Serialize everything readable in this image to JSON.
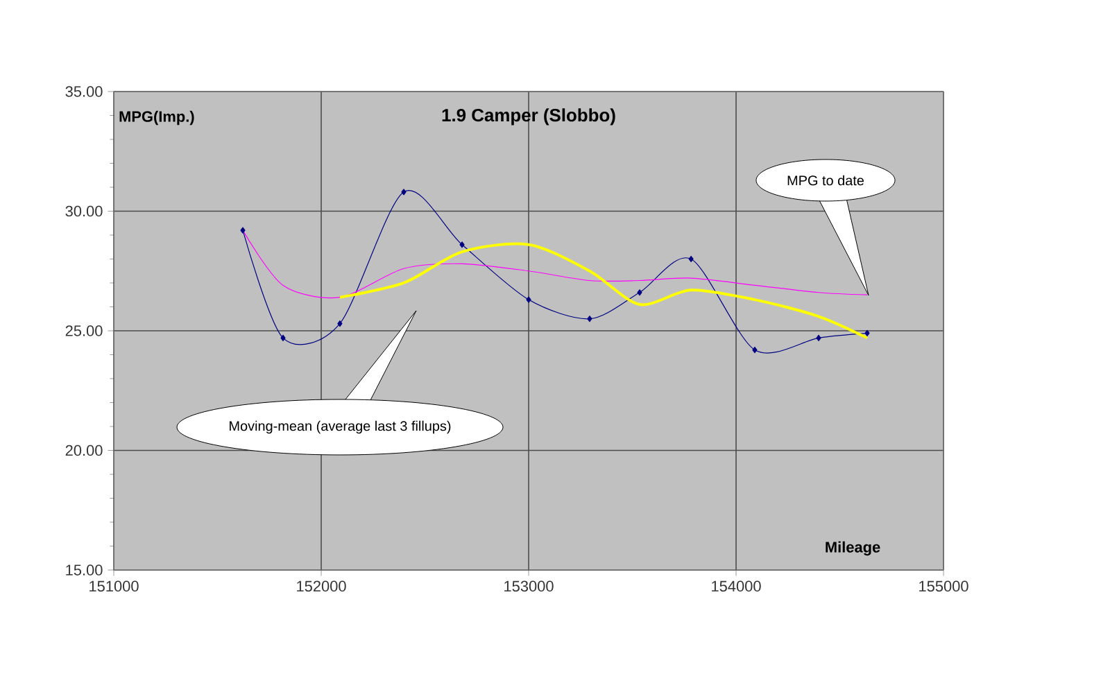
{
  "chart_data": {
    "type": "line",
    "title": "1.9 Camper (Slobbo)",
    "xlabel": "Mileage",
    "ylabel": "MPG(Imp.)",
    "xlim": [
      151000,
      155000
    ],
    "xticks": [
      151000,
      152000,
      153000,
      154000,
      155000
    ],
    "ylim": [
      15,
      35
    ],
    "yticks": [
      {
        "value": 15,
        "label": "15.00"
      },
      {
        "value": 20,
        "label": "20.00"
      },
      {
        "value": 25,
        "label": "25.00"
      },
      {
        "value": 30,
        "label": "30.00"
      },
      {
        "value": 35,
        "label": "35.00"
      }
    ],
    "grid": true,
    "series": [
      {
        "color": "#000080",
        "marker": "diamond",
        "x": [
          151622,
          151816,
          152090,
          152398,
          152679,
          153000,
          153294,
          153535,
          153783,
          154090,
          154398,
          154632
        ],
        "values": [
          29.2,
          24.7,
          25.3,
          30.8,
          28.6,
          26.3,
          25.5,
          26.6,
          28.0,
          24.2,
          24.7,
          24.9
        ]
      },
      {
        "color": "#ff00ff",
        "marker": "none",
        "x": [
          151622,
          151816,
          152090,
          152398,
          152679,
          153000,
          153294,
          153535,
          153783,
          154090,
          154398,
          154632
        ],
        "values": [
          29.2,
          26.9,
          26.4,
          27.6,
          27.8,
          27.5,
          27.1,
          27.1,
          27.2,
          26.9,
          26.6,
          26.5
        ]
      },
      {
        "color": "#ffff00",
        "marker": "none",
        "x": [
          152090,
          152398,
          152679,
          153000,
          153294,
          153535,
          153783,
          154090,
          154398,
          154632
        ],
        "values": [
          26.4,
          27.0,
          28.3,
          28.6,
          27.5,
          26.1,
          26.7,
          26.3,
          25.6,
          24.7
        ]
      }
    ],
    "annotations": [
      "Moving-mean (average last 3 fillups)",
      "MPG to date"
    ]
  }
}
